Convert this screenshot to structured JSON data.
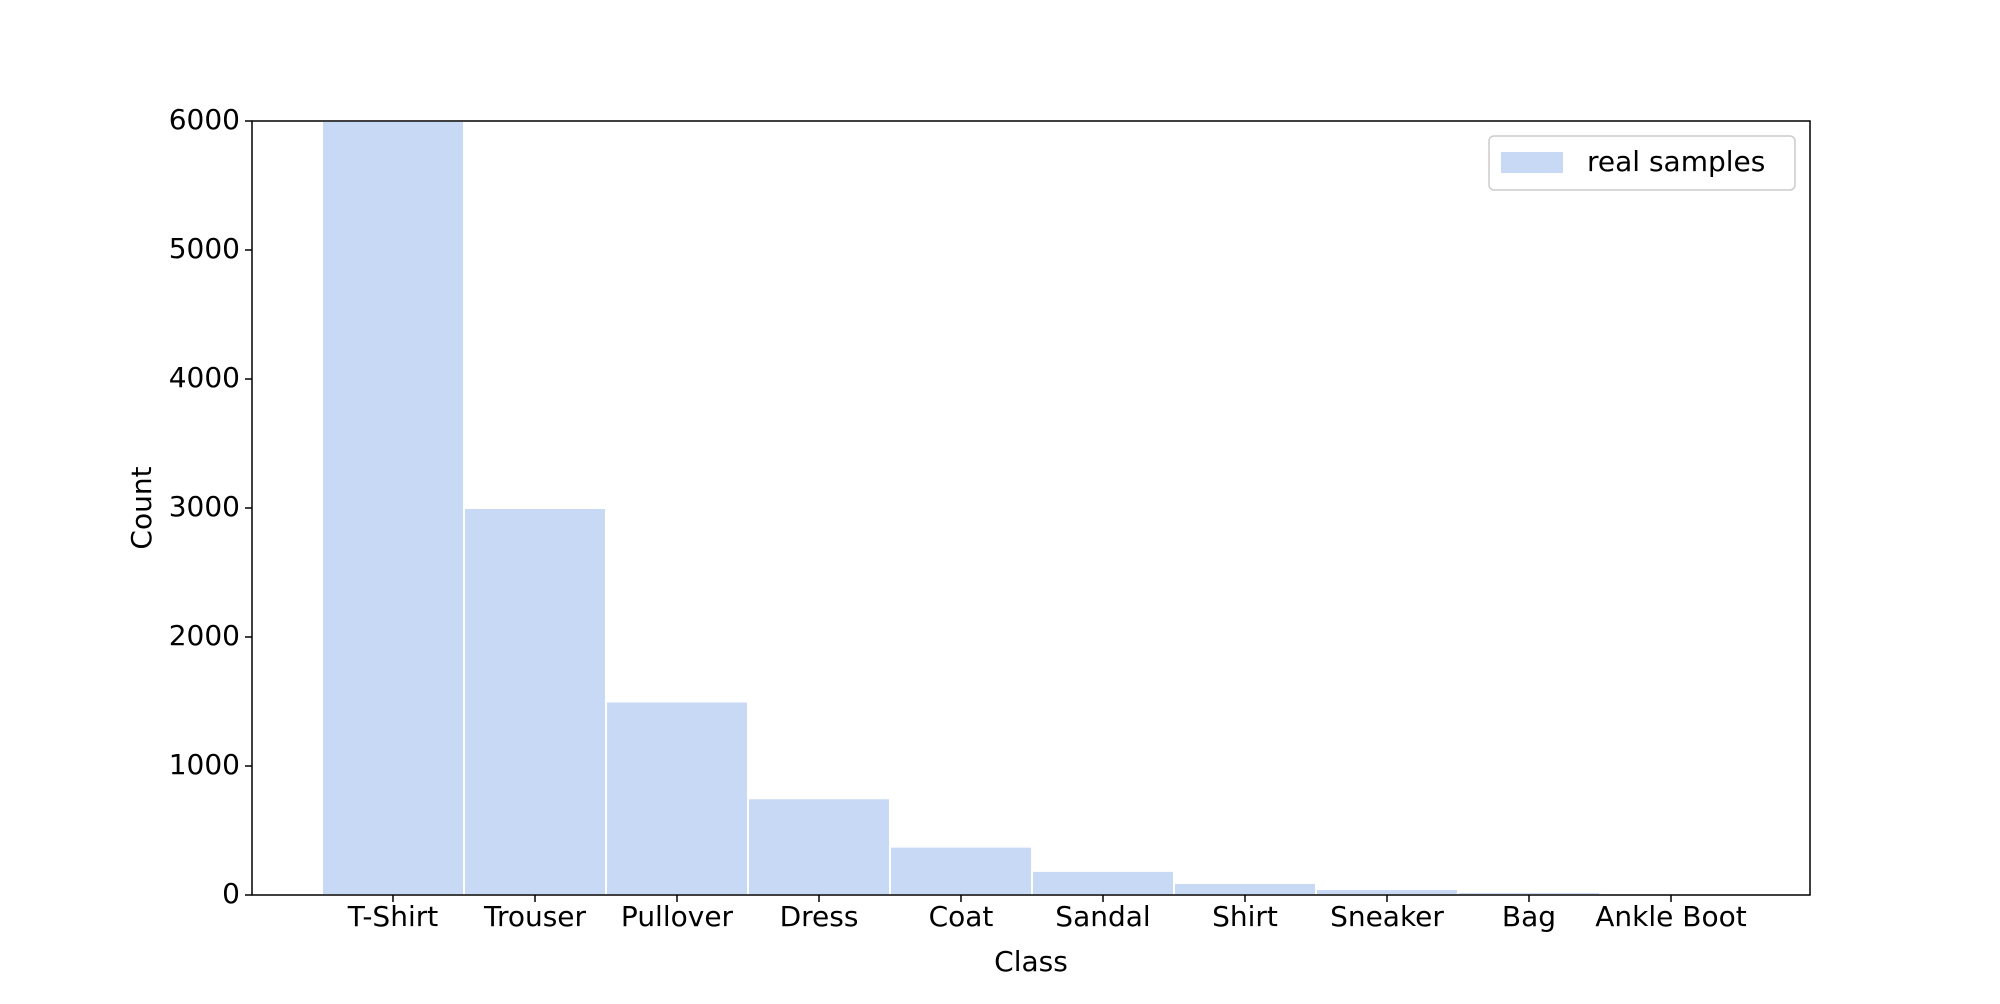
{
  "chart_data": {
    "type": "bar",
    "categories": [
      "T-Shirt",
      "Trouser",
      "Pullover",
      "Dress",
      "Coat",
      "Sandal",
      "Shirt",
      "Sneaker",
      "Bag",
      "Ankle Boot"
    ],
    "series": [
      {
        "name": "real samples",
        "values": [
          6000,
          3000,
          1500,
          750,
          375,
          187,
          93,
          46,
          23,
          11
        ],
        "color": "#c8d9f6"
      }
    ],
    "xlabel": "Class",
    "ylabel": "Count",
    "ylim": [
      0,
      6000
    ],
    "yticks": [
      0,
      1000,
      2000,
      3000,
      4000,
      5000,
      6000
    ],
    "grid": false,
    "legend": {
      "placement": "top-right",
      "entries": [
        "real samples"
      ]
    }
  }
}
